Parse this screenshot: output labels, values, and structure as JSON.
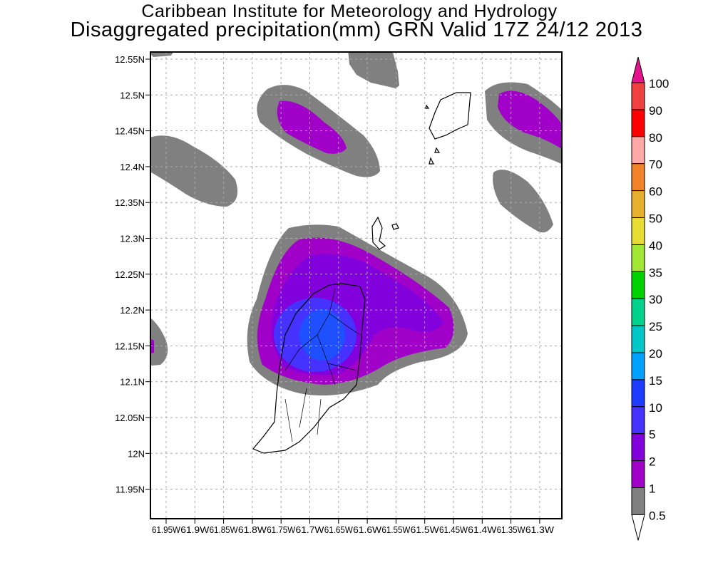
{
  "header": {
    "institute": "Caribbean Institute for Meteorology and Hydrology",
    "product": "Disaggregated precipitation(mm) GRN Valid 17Z 24/12 2013"
  },
  "map": {
    "lat_labels": [
      "12.55N",
      "12.5N",
      "12.45N",
      "12.4N",
      "12.35N",
      "12.3N",
      "12.25N",
      "12.2N",
      "12.15N",
      "12.1N",
      "12.05N",
      "12N",
      "11.95N"
    ],
    "lon_labels": [
      "61.95W",
      "61.9W",
      "61.85W",
      "61.8W",
      "61.75W",
      "61.7W",
      "61.65W",
      "61.6W",
      "61.55W",
      "61.5W",
      "61.45W",
      "61.4W",
      "61.35W",
      "61.3W"
    ]
  },
  "legend": {
    "labels": [
      "100",
      "90",
      "80",
      "70",
      "60",
      "50",
      "40",
      "35",
      "30",
      "25",
      "20",
      "15",
      "10",
      "5",
      "2",
      "1",
      "0.5"
    ],
    "colors": [
      "#f04040",
      "#ff0000",
      "#ffa8a8",
      "#f08228",
      "#e6af2d",
      "#e6dc32",
      "#a0e632",
      "#00d200",
      "#00d28c",
      "#00c8c8",
      "#00a0ff",
      "#1e3cff",
      "#4632ff",
      "#8200dc",
      "#a000c8",
      "#808080"
    ],
    "over_color": "#e6148c",
    "under_color": "#ffffff"
  }
}
